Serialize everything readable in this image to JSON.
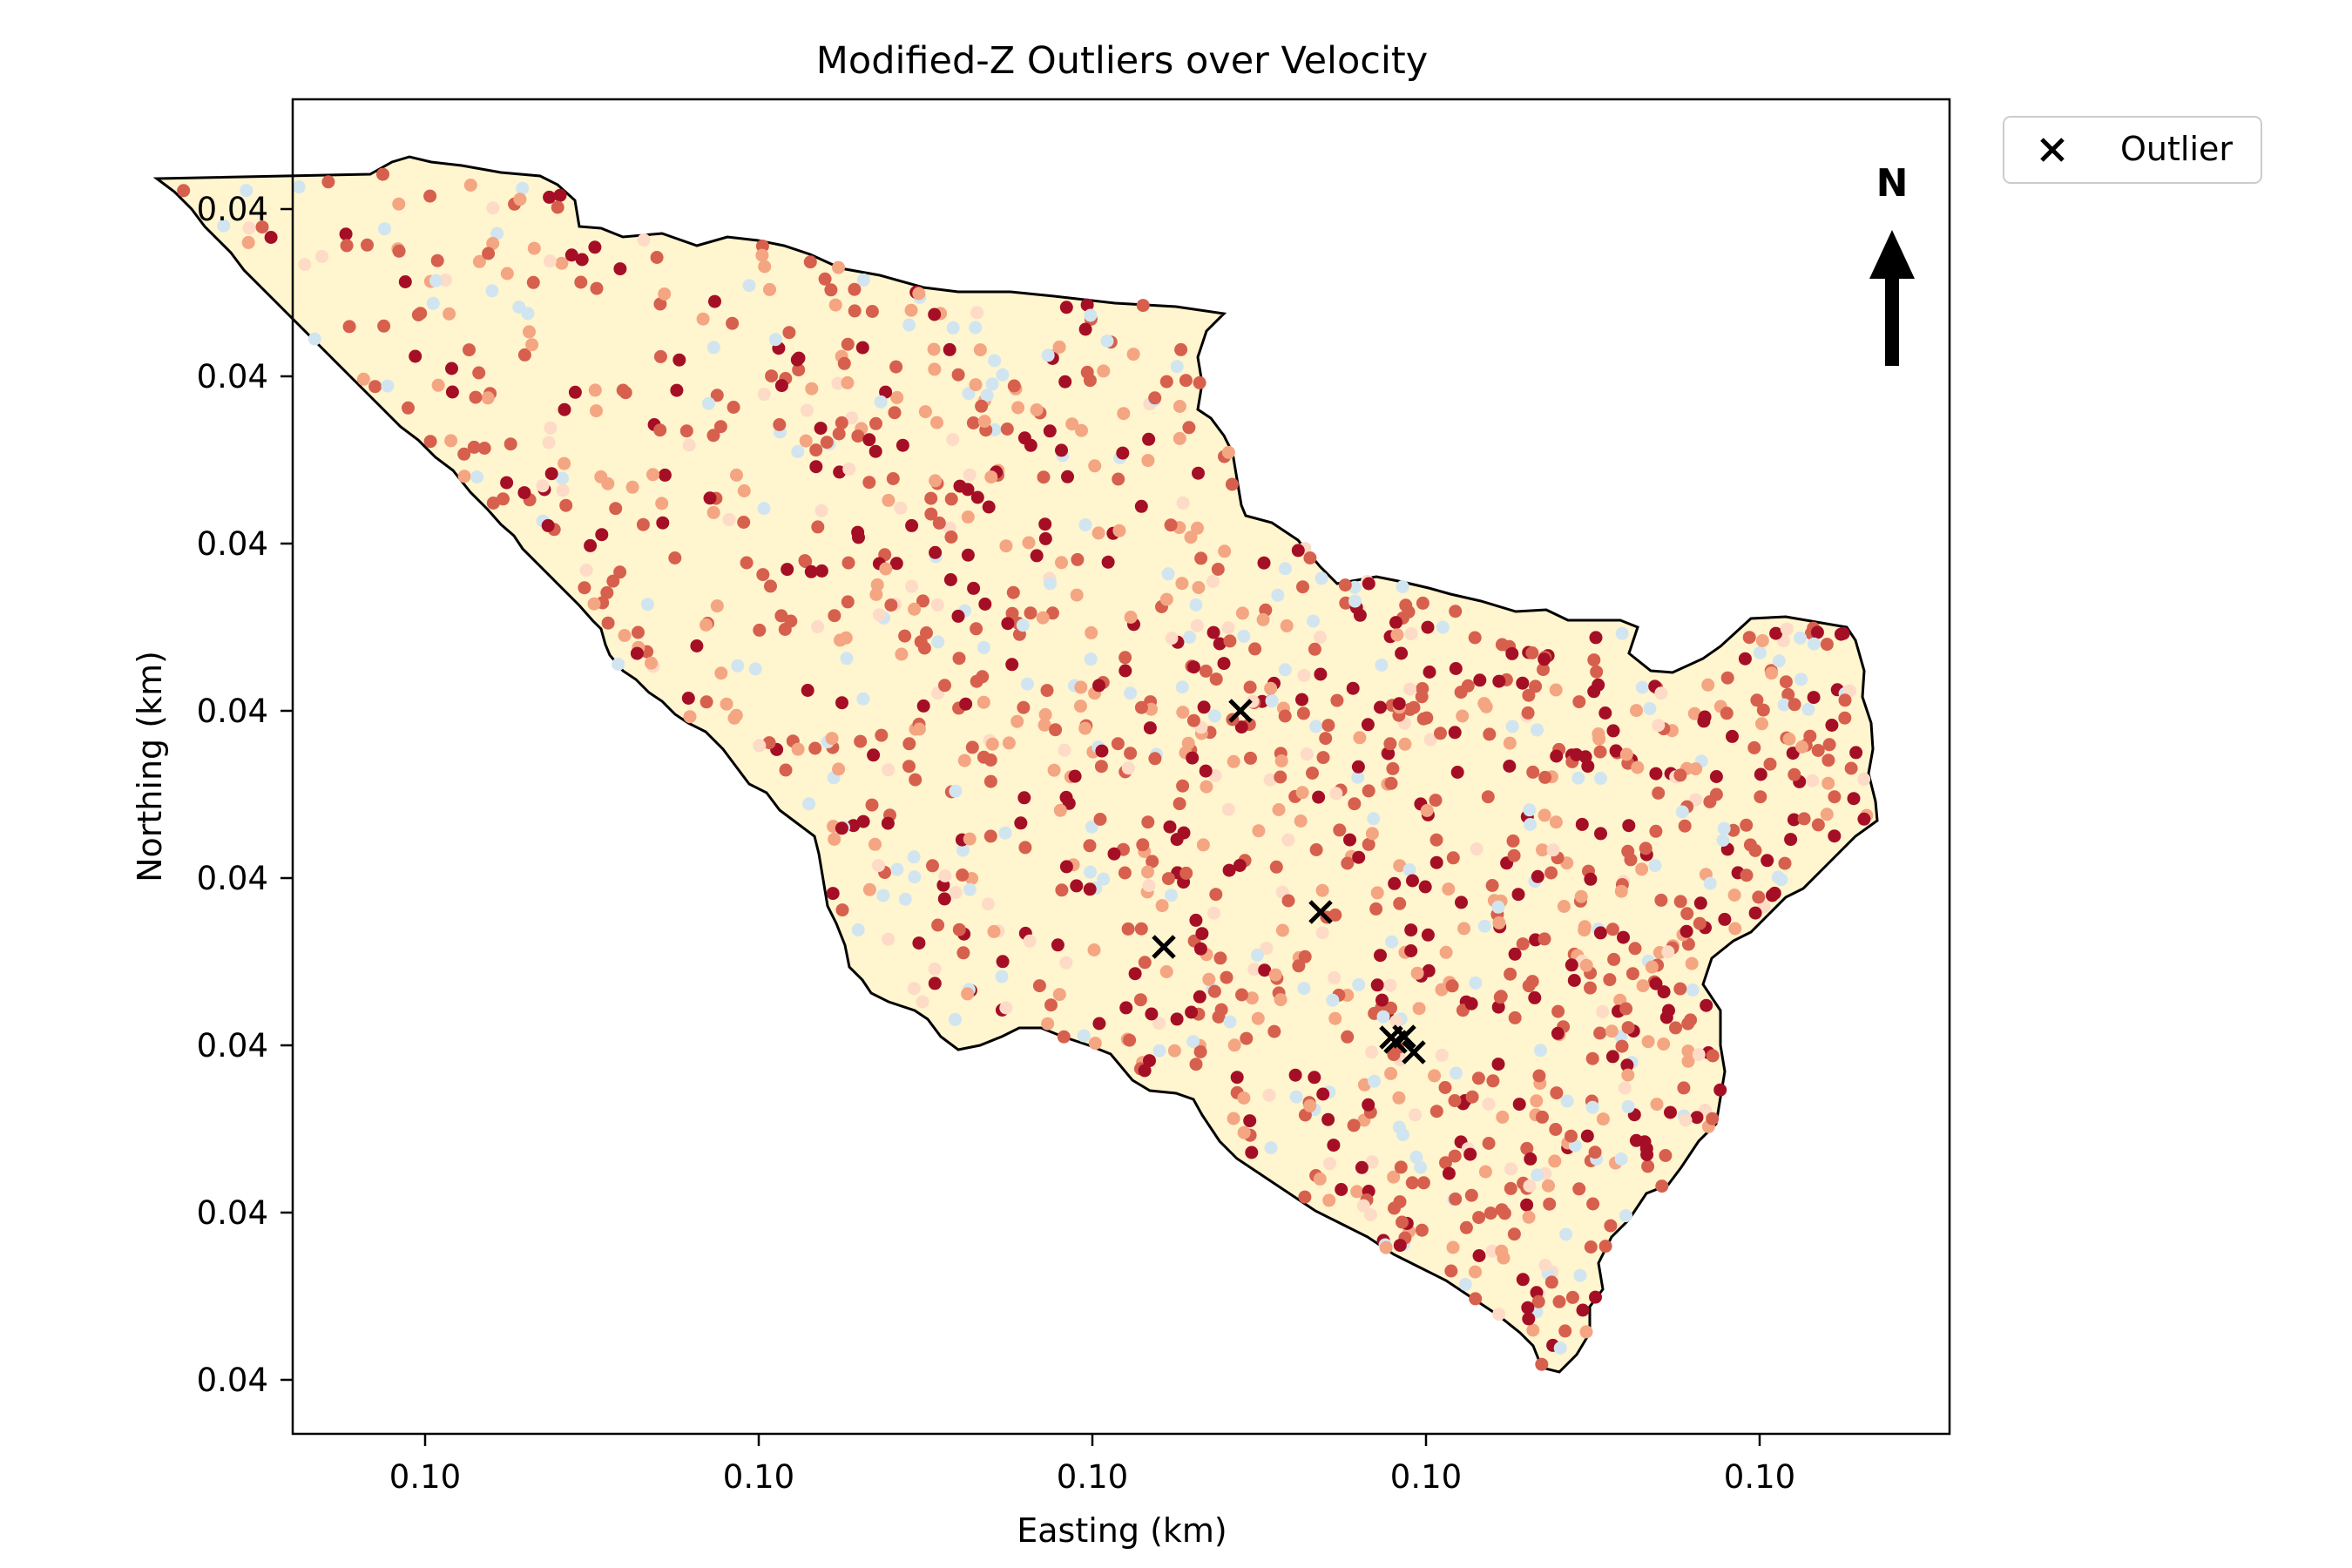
{
  "chart_data": {
    "type": "scatter",
    "title": "Modified-Z Outliers over Velocity",
    "xlabel": "Easting (km)",
    "ylabel": "Northing (km)",
    "x_tick_labels": [
      "0.10",
      "0.10",
      "0.10",
      "0.10",
      "0.10"
    ],
    "y_tick_labels": [
      "0.04",
      "0.04",
      "0.04",
      "0.04",
      "0.04",
      "0.04",
      "0.04",
      "0.04"
    ],
    "legend": {
      "placement": "upper-right outside plot",
      "entries": [
        "Outlier"
      ]
    },
    "north_arrow_label": "N",
    "colors": {
      "basin_fill": "#fff5cf",
      "basin_outline": "#000000",
      "high_velocity": "#a50f26",
      "mid_velocity": "#d6604d",
      "low_velocity": "#f4a582",
      "near_zero": "#fddbc7",
      "negative": "#d1e5f0",
      "outlier_marker": "#000000"
    },
    "points_colormap": "RdBu_r (diverging, mostly positive/red)",
    "outliers": {
      "name": "Outlier",
      "marker": "x",
      "count": 7
    },
    "grid": false
  }
}
